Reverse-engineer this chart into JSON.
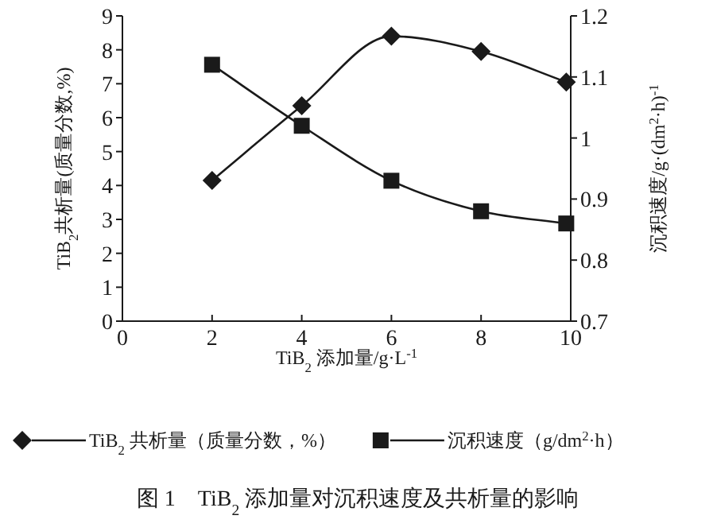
{
  "chart_data": {
    "type": "line",
    "title": "图 1　TiB$_{2}$ 添加量对沉积速度及共析量的影响",
    "xlabel": "TiB$_{2}$ 添加量/g·L$^{-1}$",
    "ylabel": "TiB$_{2}$共析量(质量分数,%)",
    "y2label": "沉积速度/g·(dm$^{2}$·h)$^{-1}$",
    "xlim": [
      0,
      10
    ],
    "xticks": [
      0,
      2,
      4,
      6,
      8,
      10
    ],
    "ylim": [
      0,
      9
    ],
    "yticks": [
      0,
      1,
      2,
      3,
      4,
      5,
      6,
      7,
      8,
      9
    ],
    "y2lim": [
      0.7,
      1.2
    ],
    "y2ticks": [
      0.7,
      0.8,
      0.9,
      1,
      1.1,
      1.2
    ],
    "legend": "bottom",
    "grid": false,
    "series": [
      {
        "name": "TiB$_{2}$ 共析量（质量分数，%）",
        "color": "#1a1a1a",
        "marker": "diamond",
        "x": [
          2,
          4,
          6,
          8,
          9.9
        ],
        "values": [
          4.15,
          6.35,
          8.4,
          7.95,
          7.05
        ]
      },
      {
        "name": "沉积速度（g/dm$^{2}$·h）",
        "color": "#1a1a1a",
        "marker": "square",
        "axis": "y2",
        "x": [
          2,
          4,
          6,
          8,
          9.9
        ],
        "values": [
          1.12,
          1.02,
          0.93,
          0.88,
          0.86
        ]
      }
    ]
  }
}
